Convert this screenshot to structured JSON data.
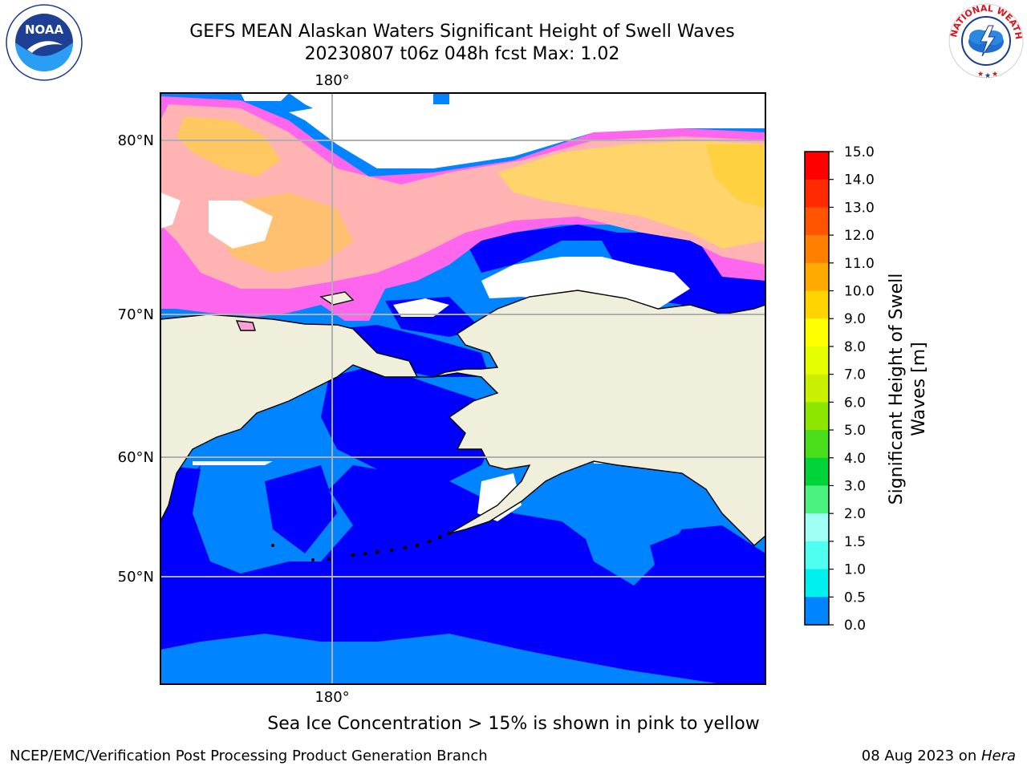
{
  "title": {
    "line1": "GEFS MEAN Alaskan Waters Significant Height of Swell Waves",
    "line2": "20230807 t06z 048h fcst   Max: 1.02"
  },
  "map": {
    "lat_labels": [
      "80°N",
      "70°N",
      "60°N",
      "50°N"
    ],
    "lon_label_top": "180°",
    "lon_label_bottom": "180°"
  },
  "colorbar": {
    "label_line1": "Significant Height of Swell",
    "label_line2": "Waves [m]",
    "ticks": [
      "15.0",
      "14.0",
      "13.0",
      "12.0",
      "11.0",
      "10.0",
      "9.0",
      "8.0",
      "7.0",
      "6.0",
      "5.0",
      "4.0",
      "3.0",
      "2.0",
      "1.5",
      "1.0",
      "0.5",
      "0.0"
    ],
    "colors": [
      "#ff0000",
      "#ff2a00",
      "#ff5500",
      "#ff7f00",
      "#ffaa00",
      "#ffd400",
      "#ffff00",
      "#e6ff00",
      "#c8f000",
      "#8ce600",
      "#4ade1a",
      "#00d43b",
      "#4cf27f",
      "#a0fff4",
      "#4ffff0",
      "#00f0ef",
      "#0084ff",
      "#0000ff"
    ]
  },
  "caption": "Sea Ice Concentration > 15% is shown in pink to yellow",
  "footer": {
    "left": "NCEP/EMC/Verification Post Processing Product Generation Branch",
    "right_prefix": "08 Aug 2023 on ",
    "right_italic": "Hera"
  },
  "logos": {
    "noaa_text": "NOAA",
    "nws_text": "NATIONAL WEATHER SERVICE"
  }
}
